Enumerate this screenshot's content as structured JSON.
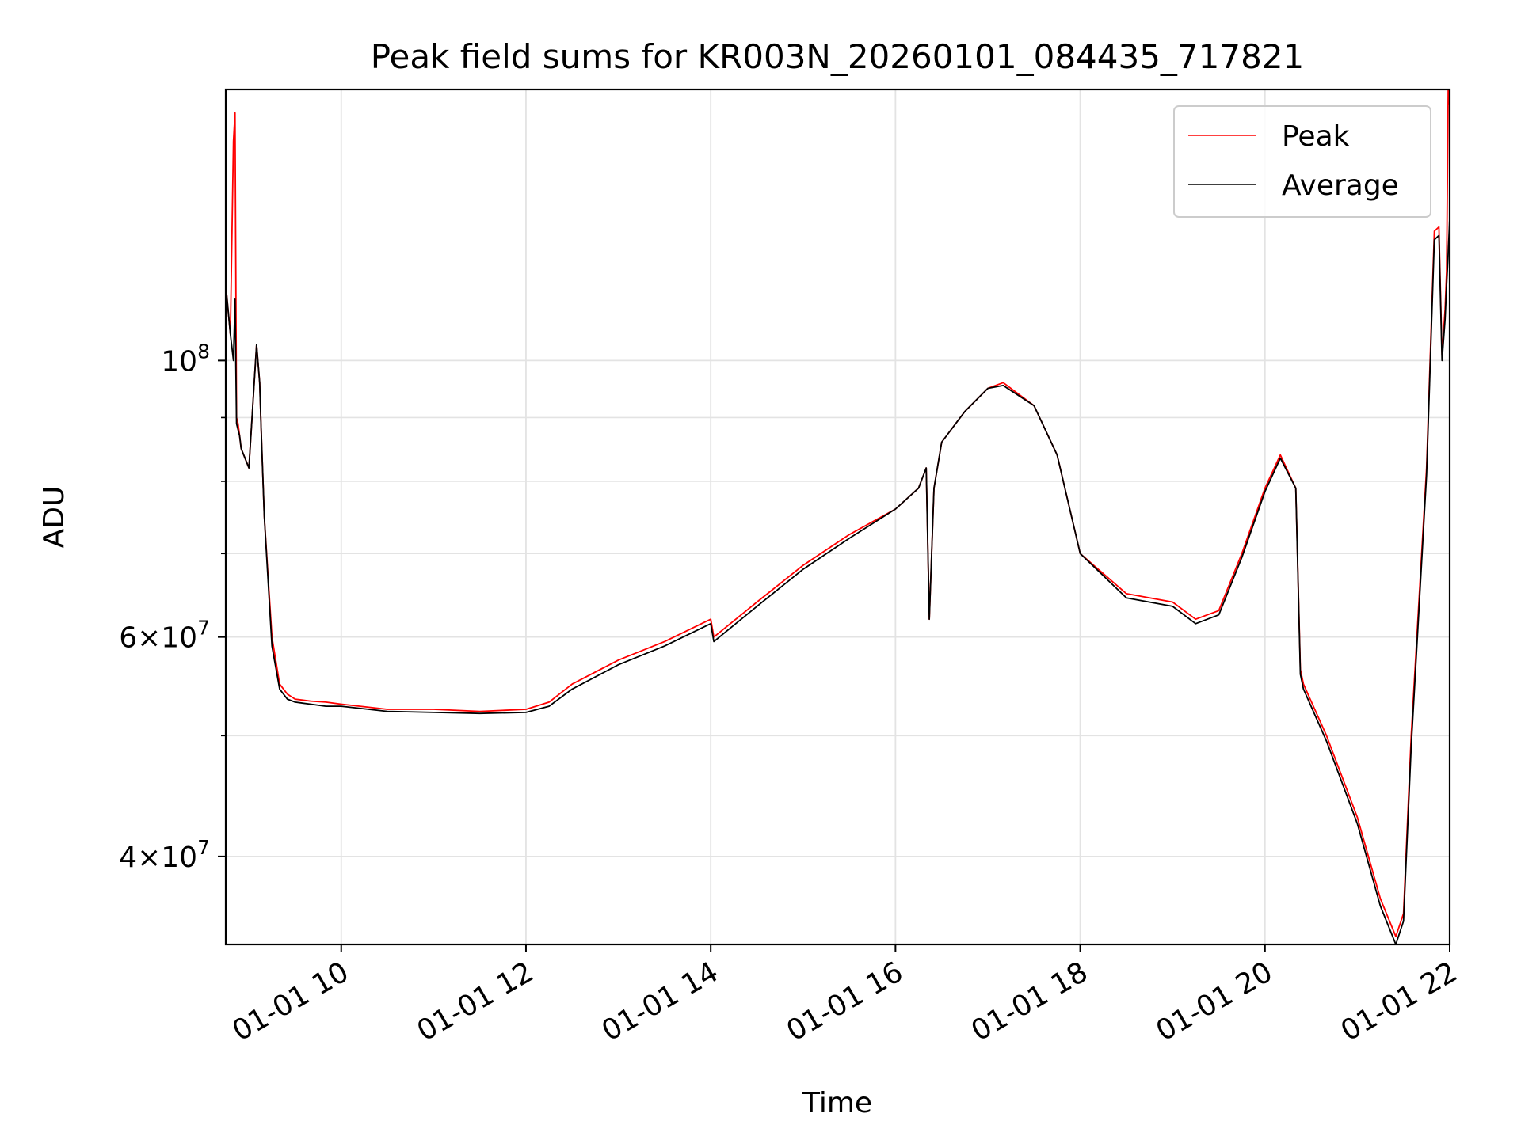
{
  "chart_data": {
    "type": "line",
    "title": "Peak field sums for KR003N_20260101_084435_717821",
    "xlabel": "Time",
    "ylabel": "ADU",
    "x_scale": "time",
    "y_scale": "log",
    "xlim": [
      "01-01 08:45",
      "01-01 22:00"
    ],
    "ylim": [
      34000000,
      165000000
    ],
    "grid": true,
    "legend_position": "top-right",
    "x_ticks": [
      "01-01 10",
      "01-01 12",
      "01-01 14",
      "01-01 16",
      "01-01 18",
      "01-01 20",
      "01-01 22"
    ],
    "y_ticks": [
      {
        "value": 40000000,
        "mantissa": "4",
        "exponent": "7"
      },
      {
        "value": 60000000,
        "mantissa": "6",
        "exponent": "7"
      },
      {
        "value": 100000000,
        "mantissa": "",
        "exponent": "8"
      }
    ],
    "y_minor_ticks": [
      50000000,
      70000000,
      80000000,
      90000000
    ],
    "colors": {
      "Peak": "#ff0000",
      "Average": "#000000"
    },
    "series": [
      {
        "name": "Peak",
        "color": "#ff0000",
        "x": [
          "01-01 08:45",
          "01-01 08:48",
          "01-01 08:50",
          "01-01 08:51",
          "01-01 08:52",
          "01-01 08:53",
          "01-01 08:54",
          "01-01 08:55",
          "01-01 09:00",
          "01-01 09:05",
          "01-01 09:07",
          "01-01 09:08",
          "01-01 09:10",
          "01-01 09:15",
          "01-01 09:20",
          "01-01 09:25",
          "01-01 09:30",
          "01-01 09:40",
          "01-01 09:50",
          "01-01 10:00",
          "01-01 10:30",
          "01-01 11:00",
          "01-01 11:30",
          "01-01 12:00",
          "01-01 12:15",
          "01-01 12:30",
          "01-01 13:00",
          "01-01 13:30",
          "01-01 14:00",
          "01-01 14:02",
          "01-01 14:30",
          "01-01 15:00",
          "01-01 15:30",
          "01-01 16:00",
          "01-01 16:15",
          "01-01 16:20",
          "01-01 16:22",
          "01-01 16:25",
          "01-01 16:30",
          "01-01 16:45",
          "01-01 17:00",
          "01-01 17:10",
          "01-01 17:30",
          "01-01 17:45",
          "01-01 18:00",
          "01-01 18:30",
          "01-01 19:00",
          "01-01 19:15",
          "01-01 19:30",
          "01-01 19:45",
          "01-01 20:00",
          "01-01 20:10",
          "01-01 20:20",
          "01-01 20:23",
          "01-01 20:25",
          "01-01 20:40",
          "01-01 21:00",
          "01-01 21:15",
          "01-01 21:25",
          "01-01 21:30",
          "01-01 21:35",
          "01-01 21:45",
          "01-01 21:50",
          "01-01 21:53",
          "01-01 21:55",
          "01-01 21:57",
          "01-01 21:58",
          "01-01 21:59",
          "01-01 22:00"
        ],
        "y": [
          115000000,
          105000000,
          150000000,
          158000000,
          90000000,
          89000000,
          87000000,
          85000000,
          82000000,
          103000000,
          96000000,
          88000000,
          75000000,
          60000000,
          55000000,
          54000000,
          53500000,
          53300000,
          53200000,
          53000000,
          52500000,
          52500000,
          52300000,
          52500000,
          53200000,
          55000000,
          57500000,
          59500000,
          62000000,
          60000000,
          64000000,
          68500000,
          72500000,
          76000000,
          79000000,
          82000000,
          62000000,
          79000000,
          86000000,
          91000000,
          95000000,
          96000000,
          92000000,
          84000000,
          70000000,
          65000000,
          64000000,
          62000000,
          63000000,
          70000000,
          79000000,
          84000000,
          79000000,
          56500000,
          55000000,
          50000000,
          43000000,
          37000000,
          34500000,
          36000000,
          50000000,
          82000000,
          127000000,
          128000000,
          101000000,
          110000000,
          118000000,
          165000000,
          160000000
        ]
      },
      {
        "name": "Average",
        "color": "#000000",
        "x": [
          "01-01 08:45",
          "01-01 08:48",
          "01-01 08:50",
          "01-01 08:51",
          "01-01 08:52",
          "01-01 08:53",
          "01-01 08:54",
          "01-01 08:55",
          "01-01 09:00",
          "01-01 09:05",
          "01-01 09:07",
          "01-01 09:08",
          "01-01 09:10",
          "01-01 09:15",
          "01-01 09:20",
          "01-01 09:25",
          "01-01 09:30",
          "01-01 09:40",
          "01-01 09:50",
          "01-01 10:00",
          "01-01 10:30",
          "01-01 11:00",
          "01-01 11:30",
          "01-01 12:00",
          "01-01 12:15",
          "01-01 12:30",
          "01-01 13:00",
          "01-01 13:30",
          "01-01 14:00",
          "01-01 14:02",
          "01-01 14:30",
          "01-01 15:00",
          "01-01 15:30",
          "01-01 16:00",
          "01-01 16:15",
          "01-01 16:20",
          "01-01 16:22",
          "01-01 16:25",
          "01-01 16:30",
          "01-01 16:45",
          "01-01 17:00",
          "01-01 17:10",
          "01-01 17:30",
          "01-01 17:45",
          "01-01 18:00",
          "01-01 18:30",
          "01-01 19:00",
          "01-01 19:15",
          "01-01 19:30",
          "01-01 19:45",
          "01-01 20:00",
          "01-01 20:10",
          "01-01 20:20",
          "01-01 20:23",
          "01-01 20:25",
          "01-01 20:40",
          "01-01 21:00",
          "01-01 21:15",
          "01-01 21:25",
          "01-01 21:30",
          "01-01 21:35",
          "01-01 21:45",
          "01-01 21:50",
          "01-01 21:53",
          "01-01 21:55",
          "01-01 21:57",
          "01-01 21:58",
          "01-01 21:59",
          "01-01 22:00"
        ],
        "y": [
          115000000,
          105000000,
          100000000,
          112000000,
          89000000,
          88000000,
          87000000,
          85000000,
          82000000,
          103000000,
          96000000,
          88000000,
          75000000,
          59000000,
          54500000,
          53500000,
          53200000,
          53000000,
          52800000,
          52800000,
          52300000,
          52200000,
          52100000,
          52200000,
          52800000,
          54500000,
          57000000,
          59000000,
          61500000,
          59500000,
          63500000,
          68000000,
          72000000,
          76000000,
          79000000,
          82000000,
          62000000,
          79000000,
          86000000,
          91000000,
          95000000,
          95500000,
          92000000,
          84000000,
          70000000,
          64500000,
          63500000,
          61500000,
          62500000,
          69500000,
          78500000,
          83500000,
          79000000,
          56000000,
          54500000,
          49500000,
          42500000,
          36500000,
          34000000,
          35500000,
          49000000,
          81000000,
          125000000,
          126000000,
          100000000,
          108000000,
          115000000,
          122000000,
          130000000
        ]
      }
    ]
  }
}
